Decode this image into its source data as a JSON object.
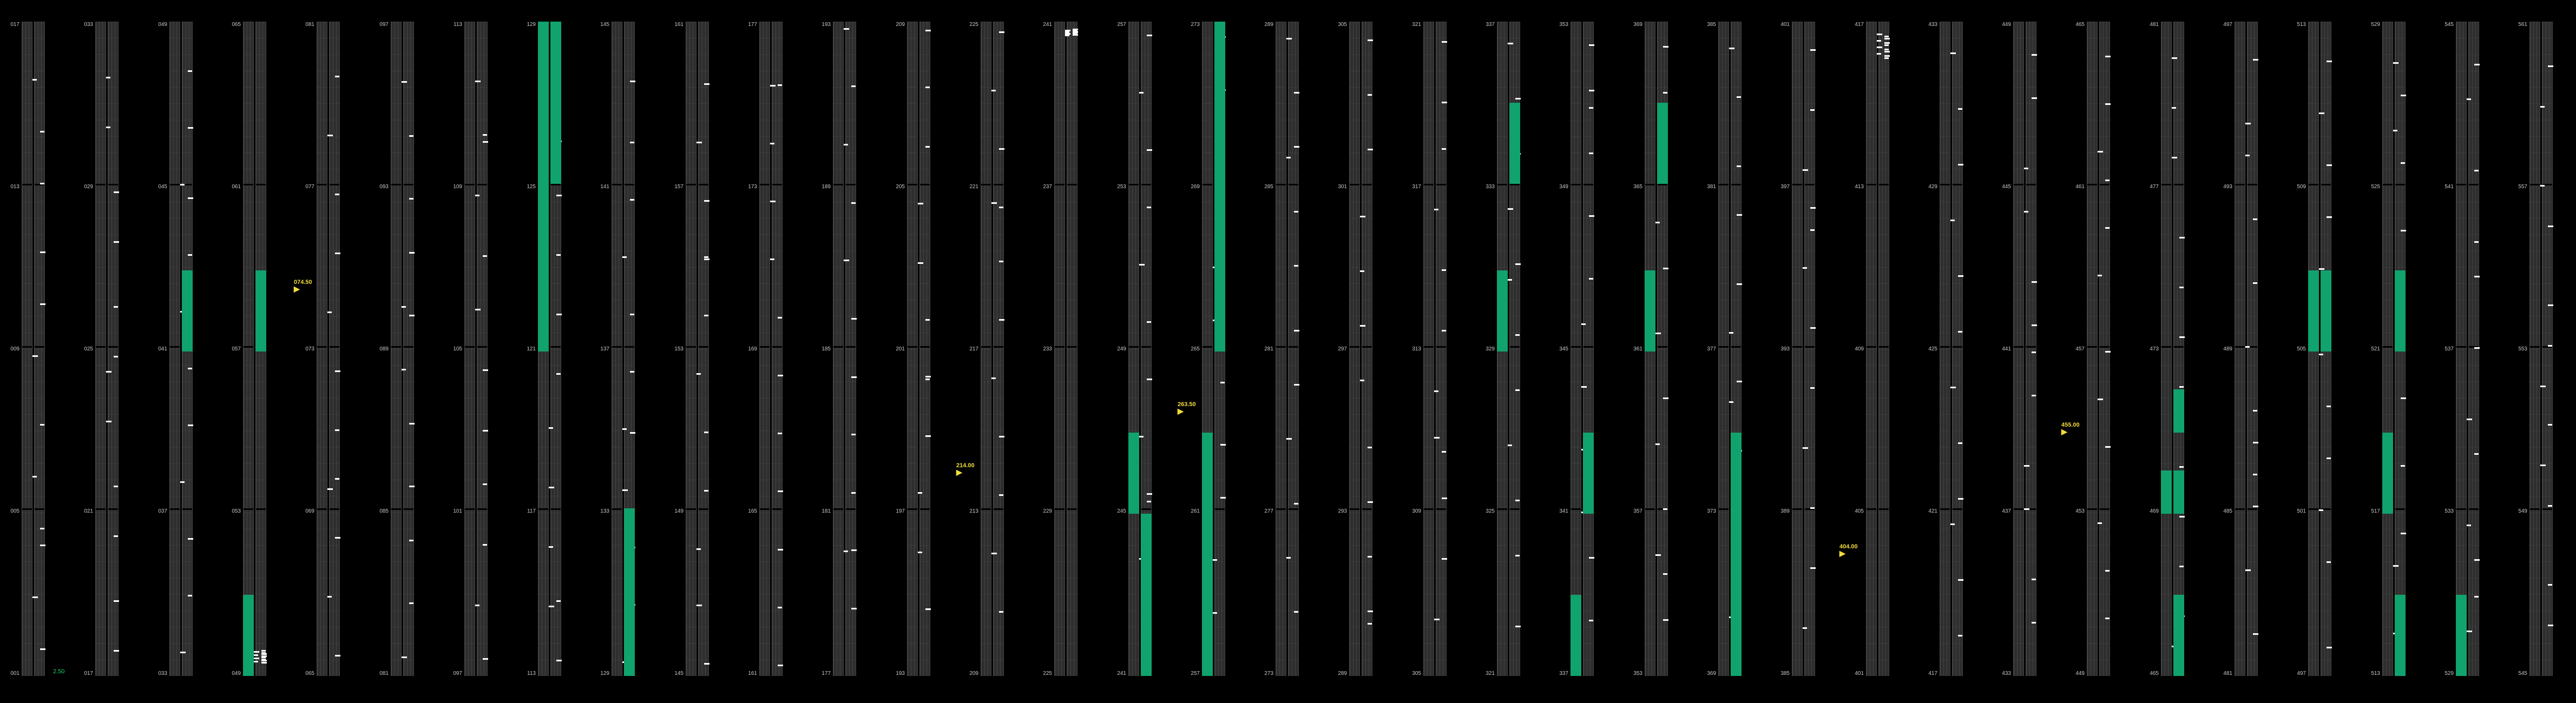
{
  "columns": [
    {
      "labels": [
        "017",
        "013",
        "009",
        "005",
        "001"
      ]
    },
    {
      "labels": [
        "033",
        "029",
        "025",
        "021",
        "017"
      ]
    },
    {
      "labels": [
        "049",
        "045",
        "041",
        "037",
        "033"
      ]
    },
    {
      "labels": [
        "065",
        "061",
        "057",
        "053",
        "049"
      ]
    },
    {
      "labels": [
        "081",
        "077",
        "073",
        "069",
        "065"
      ]
    },
    {
      "labels": [
        "097",
        "093",
        "089",
        "085",
        "081"
      ]
    },
    {
      "labels": [
        "113",
        "109",
        "105",
        "101",
        "097"
      ]
    },
    {
      "labels": [
        "129",
        "125",
        "121",
        "117",
        "113"
      ]
    },
    {
      "labels": [
        "145",
        "141",
        "137",
        "133",
        "129"
      ]
    },
    {
      "labels": [
        "161",
        "157",
        "153",
        "149",
        "145"
      ]
    },
    {
      "labels": [
        "177",
        "173",
        "169",
        "165",
        "161"
      ]
    },
    {
      "labels": [
        "193",
        "189",
        "185",
        "181",
        "177"
      ]
    },
    {
      "labels": [
        "209",
        "205",
        "201",
        "197",
        "193"
      ]
    },
    {
      "labels": [
        "225",
        "221",
        "217",
        "213",
        "209"
      ]
    },
    {
      "labels": [
        "241",
        "237",
        "233",
        "229",
        "225"
      ]
    },
    {
      "labels": [
        "257",
        "253",
        "249",
        "245",
        "241"
      ]
    },
    {
      "labels": [
        "273",
        "269",
        "265",
        "261",
        "257"
      ]
    },
    {
      "labels": [
        "289",
        "285",
        "281",
        "277",
        "273"
      ]
    },
    {
      "labels": [
        "305",
        "301",
        "297",
        "293",
        "289"
      ]
    },
    {
      "labels": [
        "321",
        "317",
        "313",
        "309",
        "305"
      ]
    },
    {
      "labels": [
        "337",
        "333",
        "329",
        "325",
        "321"
      ]
    },
    {
      "labels": [
        "353",
        "349",
        "345",
        "341",
        "337"
      ]
    },
    {
      "labels": [
        "369",
        "365",
        "361",
        "357",
        "353"
      ]
    },
    {
      "labels": [
        "385",
        "381",
        "377",
        "373",
        "369"
      ]
    },
    {
      "labels": [
        "401",
        "397",
        "393",
        "389",
        "385"
      ]
    },
    {
      "labels": [
        "417",
        "413",
        "409",
        "405",
        "401"
      ]
    },
    {
      "labels": [
        "433",
        "429",
        "425",
        "421",
        "417"
      ]
    },
    {
      "labels": [
        "449",
        "445",
        "441",
        "437",
        "433"
      ]
    },
    {
      "labels": [
        "465",
        "461",
        "457",
        "453",
        "449"
      ]
    },
    {
      "labels": [
        "481",
        "477",
        "473",
        "469",
        "465"
      ]
    },
    {
      "labels": [
        "497",
        "493",
        "489",
        "485",
        "481"
      ]
    },
    {
      "labels": [
        "513",
        "509",
        "505",
        "501",
        "497"
      ]
    },
    {
      "labels": [
        "529",
        "525",
        "521",
        "517",
        "513"
      ]
    },
    {
      "labels": [
        "545",
        "541",
        "537",
        "533",
        "529"
      ]
    },
    {
      "labels": [
        "561",
        "557",
        "553",
        "549",
        "545"
      ]
    }
  ],
  "status": {
    "value": "2.50"
  },
  "markers": [
    {
      "label": "074.50"
    },
    {
      "label": "214.00"
    },
    {
      "label": "263.50"
    },
    {
      "label": "404.00"
    },
    {
      "label": "455.00"
    }
  ],
  "colors": {
    "accent": "#11a36d",
    "marker": "#f2dc3a"
  }
}
